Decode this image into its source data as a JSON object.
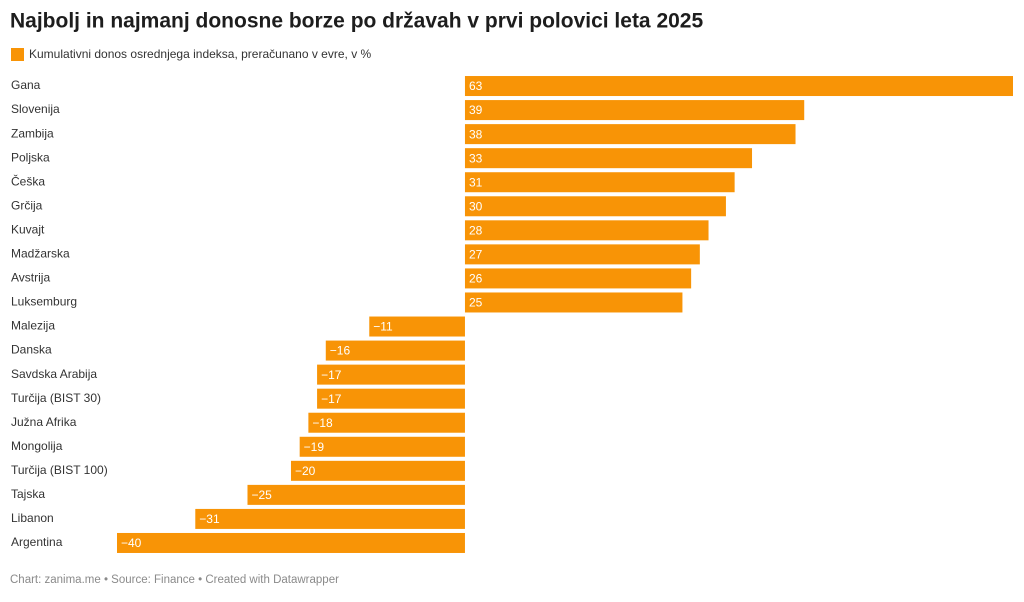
{
  "chart_data": {
    "type": "bar",
    "orientation": "horizontal",
    "title": "Najbolj in najmanj donosne borze po državah v prvi polovici leta 2025",
    "legend": "Kumulativni donos osrednjega indeksa, preračunano v evre, v %",
    "categories": [
      "Gana",
      "Slovenija",
      "Zambija",
      "Poljska",
      "Češka",
      "Grčija",
      "Kuvajt",
      "Madžarska",
      "Avstrija",
      "Luksemburg",
      "Malezija",
      "Danska",
      "Savdska Arabija",
      "Turčija (BIST 30)",
      "Južna Afrika",
      "Mongolija",
      "Turčija (BIST 100)",
      "Tajska",
      "Libanon",
      "Argentina"
    ],
    "values": [
      63,
      39,
      38,
      33,
      31,
      30,
      28,
      27,
      26,
      25,
      -11,
      -16,
      -17,
      -17,
      -18,
      -19,
      -20,
      -25,
      -31,
      -40
    ],
    "value_labels": [
      "63",
      "39",
      "38",
      "33",
      "31",
      "30",
      "28",
      "27",
      "26",
      "25",
      "−11",
      "−16",
      "−17",
      "−17",
      "−18",
      "−19",
      "−20",
      "−25",
      "−31",
      "−40"
    ],
    "color": "#f89406",
    "footer": "Chart: zanima.me • Source: Finance • Created with Datawrapper"
  }
}
